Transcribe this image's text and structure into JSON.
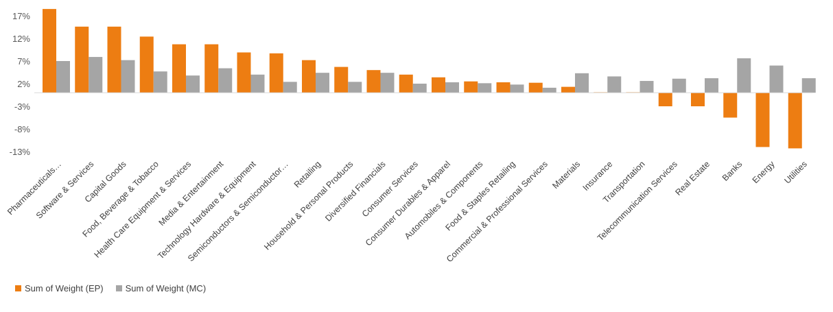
{
  "chart_data": {
    "type": "bar",
    "categories": [
      "Pharmaceuticals…",
      "Software & Services",
      "Capital Goods",
      "Food, Beverage & Tobacco",
      "Health Care Equipment & Services",
      "Media & Entertainment",
      "Technology Hardware & Equipment",
      "Semiconductors & Semiconductor…",
      "Retailing",
      "Household & Personal Products",
      "Diversified Financials",
      "Consumer Services",
      "Consumer Durables & Apparel",
      "Automobiles & Components",
      "Food & Staples Retailing",
      "Commercial & Professional Services",
      "Materials",
      "Insurance",
      "Transportation",
      "Telecommunication Services",
      "Real Estate",
      "Banks",
      "Energy",
      "Utilities"
    ],
    "series": [
      {
        "name": "Sum of Weight (EP)",
        "color": "#ed7d12",
        "values": [
          18.5,
          14.6,
          14.6,
          12.4,
          10.7,
          10.7,
          8.9,
          8.7,
          7.2,
          5.7,
          5.0,
          4.0,
          3.4,
          2.5,
          2.3,
          2.2,
          1.3,
          0.1,
          0.1,
          -3.0,
          -3.0,
          -5.5,
          -12.0,
          -12.3
        ]
      },
      {
        "name": "Sum of Weight (MC)",
        "color": "#a5a5a5",
        "values": [
          7.0,
          7.9,
          7.2,
          4.7,
          3.8,
          5.4,
          4.0,
          2.4,
          4.4,
          2.4,
          4.4,
          2.0,
          2.3,
          2.1,
          1.8,
          1.1,
          4.3,
          3.6,
          2.6,
          3.1,
          3.2,
          7.6,
          6.0,
          3.2
        ]
      }
    ],
    "yticks": [
      17,
      12,
      7,
      2,
      -3,
      -8,
      -13
    ],
    "ytick_labels": [
      "17%",
      "12%",
      "7%",
      "2%",
      "-3%",
      "-8%",
      "-13%"
    ],
    "ylim": [
      -15,
      19
    ],
    "baseline": 0,
    "grid": false,
    "legend_position": "bottom-left"
  }
}
